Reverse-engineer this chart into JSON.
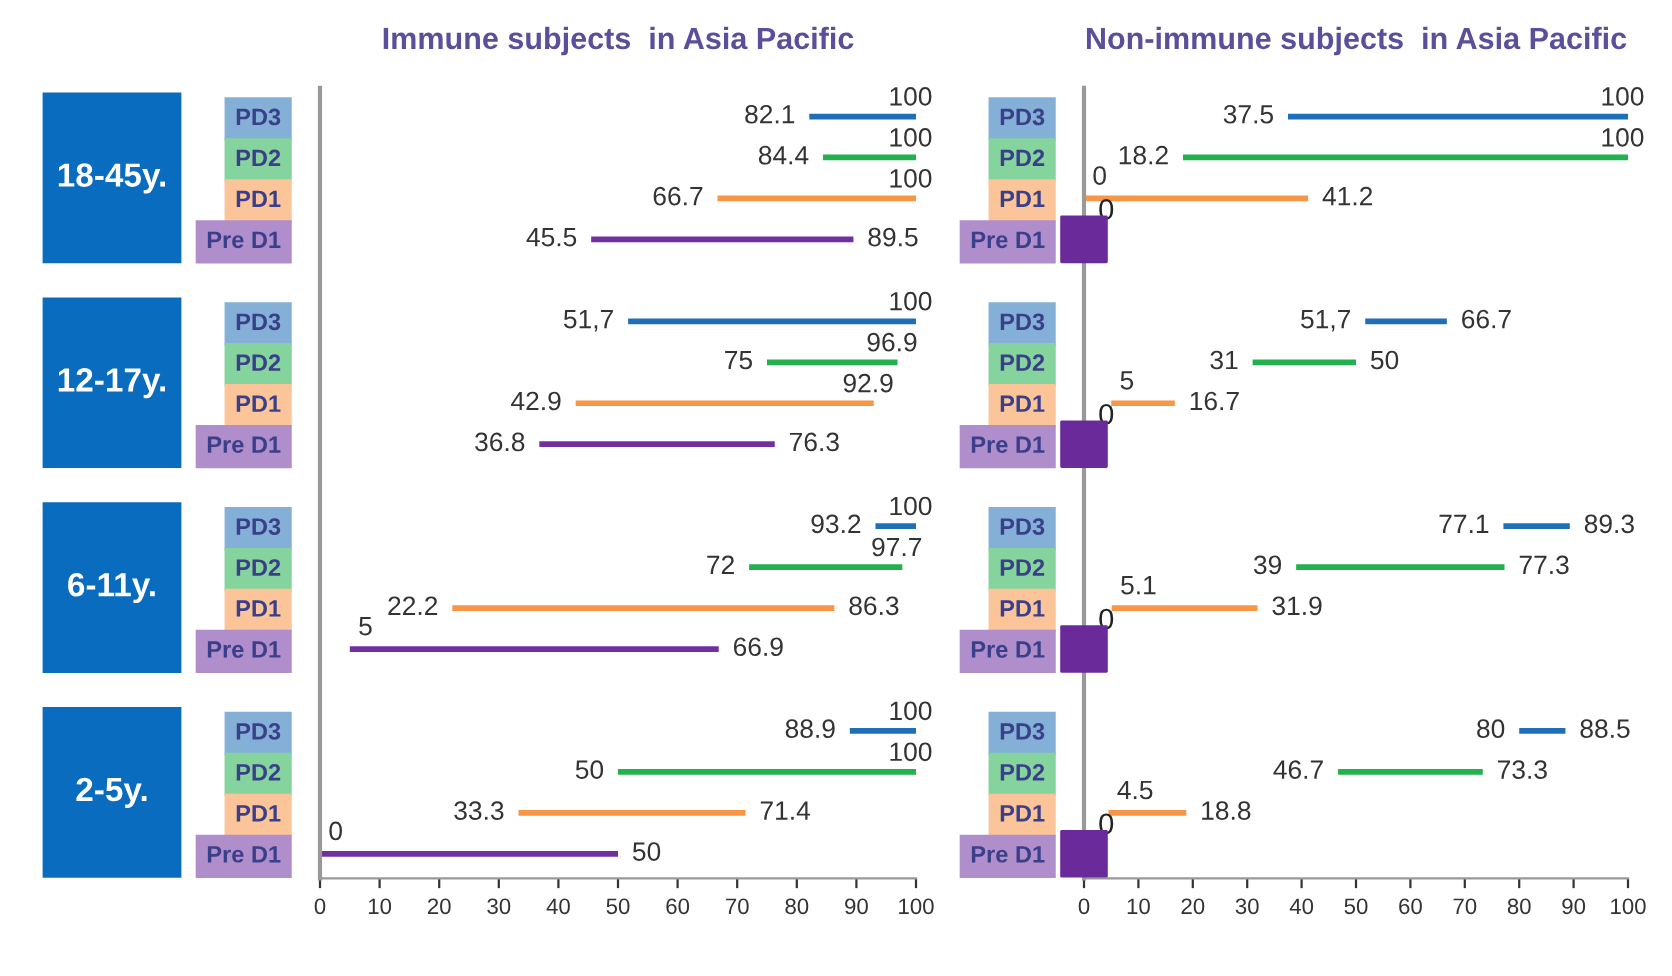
{
  "chart_data": [
    {
      "type": "bar",
      "orientation": "horizontal",
      "title": "Immune subjects  in Asia Pacific",
      "categories": [
        "PD3",
        "PD2",
        "PD1",
        "Pre D1",
        null,
        "PD3",
        "PD2",
        "PD1",
        "Pre D1",
        null,
        "PD3",
        "PD2",
        "PD1",
        "Pre D1",
        null,
        "PD3",
        "PD2",
        "PD1",
        "Pre D1"
      ],
      "series": [
        {
          "type": "bar",
          "base": [
            82.1,
            84.4,
            66.7,
            45.5,
            null,
            51.7,
            75,
            42.9,
            36.8,
            null,
            93.2,
            72,
            22.2,
            5,
            null,
            88.9,
            50,
            33.3,
            0
          ],
          "values": [
            17.9,
            15.6,
            33.3,
            44.0,
            null,
            48.3,
            21.9,
            50.0,
            39.5,
            null,
            6.8,
            25.7,
            64.1,
            61.9,
            null,
            11.1,
            50,
            38.1,
            50
          ],
          "colors": [
            "#1f6fb8",
            "#22b14c",
            "#f79646",
            "#7030a0",
            null,
            "#1f6fb8",
            "#22b14c",
            "#f79646",
            "#7030a0",
            null,
            "#1f6fb8",
            "#22b14c",
            "#f79646",
            "#7030a0",
            null,
            "#1f6fb8",
            "#22b14c",
            "#f79646",
            "#7030a0"
          ],
          "value_labels": [
            "100",
            "100",
            "100",
            "89.5",
            null,
            "100",
            "96.9",
            "92.9",
            "76.3",
            null,
            "100",
            "97.7",
            "86.3",
            "66.9",
            null,
            "100",
            "100",
            "71.4",
            "50"
          ]
        }
      ],
      "annotations": [
        "18-45y.",
        "12-17y.",
        "6-11y.",
        "2-5y.",
        "82.1",
        "84.4",
        "66.7",
        "45.5",
        "51,7",
        "75",
        "42.9",
        "36.8",
        "93.2",
        "72",
        "22.2",
        "5",
        "88.9",
        "50",
        "33.3",
        "0"
      ],
      "xlim": [
        0,
        100
      ],
      "xticks": [
        0,
        10,
        20,
        30,
        40,
        50,
        60,
        70,
        80,
        90,
        100
      ],
      "grid": false,
      "legend": false
    },
    {
      "type": "bar",
      "orientation": "horizontal",
      "title": "Non-immune subjects  in Asia Pacific",
      "categories": [
        "PD3",
        "PD2",
        "PD1",
        "Pre D1",
        null,
        "PD3",
        "PD2",
        "PD1",
        "Pre D1",
        null,
        "PD3",
        "PD2",
        "PD1",
        "Pre D1",
        null,
        "PD3",
        "PD2",
        "PD1",
        "Pre D1"
      ],
      "series": [
        {
          "type": "bar",
          "base": [
            37.5,
            18.2,
            0,
            null,
            null,
            51.7,
            31,
            5,
            null,
            null,
            77.1,
            39,
            5.1,
            null,
            null,
            80,
            46.7,
            4.5,
            null
          ],
          "values": [
            62.5,
            81.8,
            41.2,
            null,
            null,
            15.0,
            19,
            11.7,
            null,
            null,
            12.2,
            38.3,
            26.8,
            null,
            null,
            8.5,
            26.6,
            14.3,
            null
          ],
          "colors": [
            "#1f6fb8",
            "#22b14c",
            "#f79646",
            "#7030a0",
            null,
            "#1f6fb8",
            "#22b14c",
            "#f79646",
            "#7030a0",
            null,
            "#1f6fb8",
            "#22b14c",
            "#f79646",
            "#7030a0",
            null,
            "#1f6fb8",
            "#22b14c",
            "#f79646",
            "#7030a0"
          ],
          "value_labels": [
            "100",
            "100",
            "41.2",
            null,
            null,
            "66.7",
            "50",
            "16.7",
            null,
            null,
            "89.3",
            "77.3",
            "31.9",
            null,
            null,
            "88.5",
            "73.3",
            "18.8",
            null
          ]
        },
        {
          "type": "scatter",
          "marker": "square",
          "color": "#6a2a9a",
          "values": [
            null,
            null,
            null,
            0,
            null,
            null,
            null,
            null,
            0,
            null,
            null,
            null,
            null,
            0,
            null,
            null,
            null,
            null,
            0
          ],
          "value_labels": [
            null,
            null,
            null,
            "0",
            null,
            null,
            null,
            null,
            "0",
            null,
            null,
            null,
            null,
            "0",
            null,
            null,
            null,
            null,
            "0"
          ]
        }
      ],
      "annotations": [
        "37.5",
        "18.2",
        "0",
        "51,7",
        "31",
        "5",
        "77.1",
        "39",
        "5.1",
        "80",
        "46.7",
        "4.5"
      ],
      "xlim": [
        0,
        100
      ],
      "xticks": [
        0,
        10,
        20,
        30,
        40,
        50,
        60,
        70,
        80,
        90,
        100
      ],
      "grid": false,
      "legend": false
    }
  ]
}
